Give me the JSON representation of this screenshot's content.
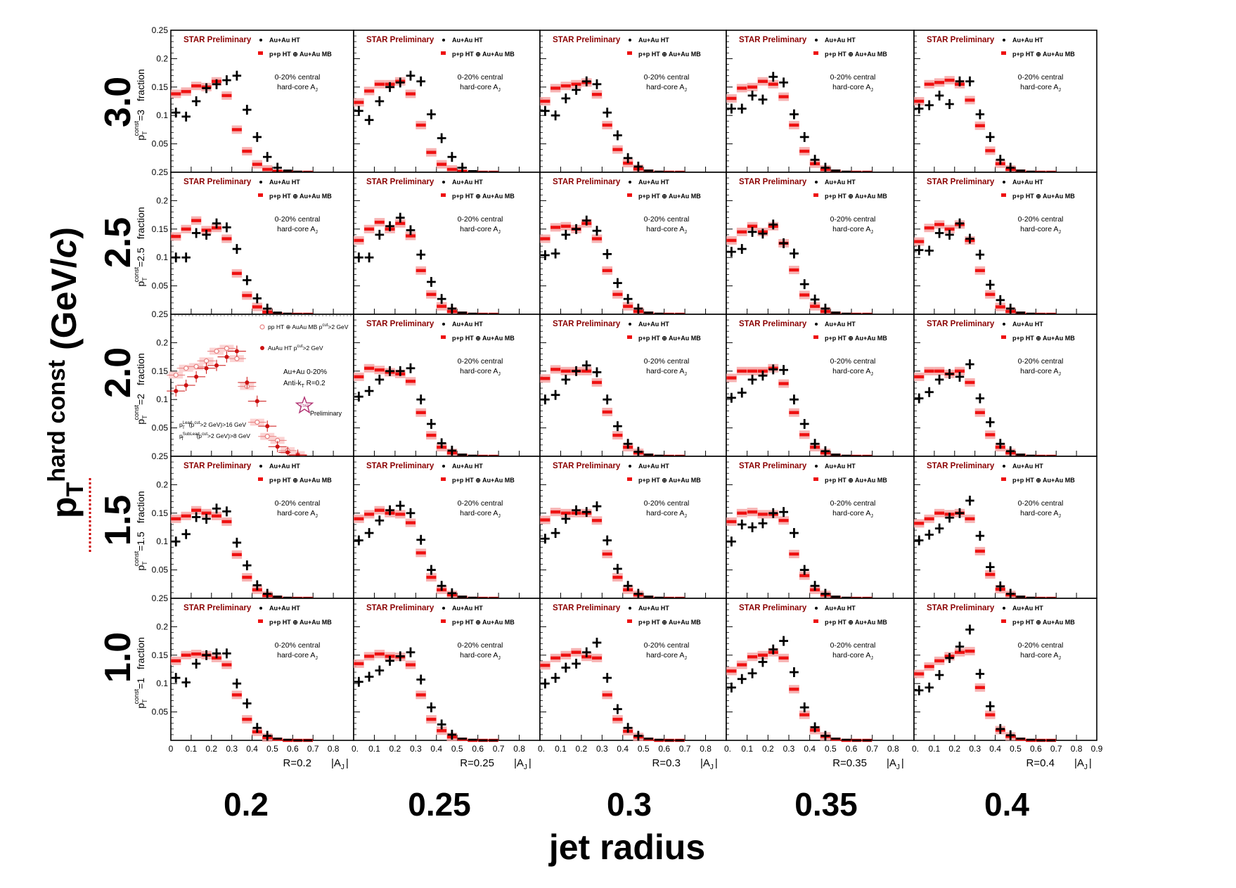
{
  "labels": {
    "preliminary": "STAR Preliminary",
    "auau_legend": "Au+Au HT",
    "pp_legend": "p+p HT ⊕ Au+Au MB",
    "centrality": "0-20% central",
    "hardcore": "hard-core A",
    "hardcore_sub": "J",
    "x_title": "jet radius",
    "y_title_main": "p",
    "y_title_sub": "T",
    "y_title_sup": "hard const",
    "y_title_unit": "(GeV/",
    "y_title_unit_c": "c",
    "y_title_close": ")",
    "axis_aj": "|A",
    "axis_aj_sub": "J",
    "axis_aj_close": "|",
    "fraction": "fraction",
    "pt_prefix": "p",
    "pt_sup": "const",
    "pt_sub": "T"
  },
  "legacy_panel": {
    "legend_pp": "pp HT ⊕ AuAu MB p",
    "legend_pp_tail": ">2 GeV",
    "legend_auau": "AuAu HT p",
    "legend_auau_tail": ">2 GeV",
    "sup_cut": "cut",
    "info1": "Au+Au 0-20%",
    "info2": "Anti-k",
    "info2_sub": "T",
    "info2_tail": " R=0.2",
    "logo_text": "STAR",
    "logo_word": "Preliminary",
    "cut1_pre": "p",
    "cut1_sup": "Lead",
    "cut1_sub": "T",
    "cut1_mid": "(p",
    "cut1_mid_sub": "T",
    "cut1_mid_sup": "cut",
    "cut1_tail": ">2 GeV)>16 GeV",
    "cut2_sup": "SubLead",
    "cut2_tail": ">2 GeV)>8 GeV"
  },
  "colors": {
    "auau": "#000000",
    "pp": "#ee1111",
    "pp_band": "#f5a0a0",
    "preliminary": "#8b0000",
    "legacy_open": "#e88080",
    "legacy_closed": "#cc1111"
  },
  "chart_data": {
    "type": "scatter",
    "columns": [
      "0.2",
      "0.25",
      "0.3",
      "0.35",
      "0.4"
    ],
    "rows": [
      "3.0",
      "2.5",
      "2.0",
      "1.5",
      "1.0"
    ],
    "row_pt_values": [
      "3",
      "2.5",
      "2",
      "1.5",
      "1"
    ],
    "radius_tags": [
      "R=0.2",
      "R=0.25",
      "R=0.3",
      "R=0.35",
      "R=0.4"
    ],
    "x_label": "jet radius",
    "y_label": "pT hard const (GeV/c)",
    "xlim": [
      0,
      0.9
    ],
    "ylim": [
      0,
      0.25
    ],
    "x_ticks": [
      "0",
      "0.1",
      "0.2",
      "0.3",
      "0.4",
      "0.5",
      "0.6",
      "0.7",
      "0.8",
      "0.9"
    ],
    "y_ticks": [
      "0.05",
      "0.1",
      "0.15",
      "0.2",
      "0.25"
    ],
    "x": [
      0.025,
      0.075,
      0.125,
      0.175,
      0.225,
      0.275,
      0.325,
      0.375,
      0.425,
      0.475,
      0.525,
      0.575,
      0.625,
      0.675
    ],
    "panels": [
      [
        {
          "auau": [
            0.105,
            0.098,
            0.125,
            0.148,
            0.155,
            0.162,
            0.17,
            0.11,
            0.062,
            0.027,
            0.008,
            0.003,
            0.001,
            0
          ],
          "pp": [
            0.138,
            0.142,
            0.152,
            0.15,
            0.16,
            0.135,
            0.075,
            0.037,
            0.014,
            0.005,
            0.002,
            0.001,
            0,
            0
          ]
        },
        {
          "auau": [
            0.108,
            0.092,
            0.125,
            0.15,
            0.158,
            0.17,
            0.16,
            0.102,
            0.06,
            0.027,
            0.008,
            0.002,
            0,
            0
          ],
          "pp": [
            0.123,
            0.143,
            0.155,
            0.155,
            0.16,
            0.138,
            0.083,
            0.035,
            0.014,
            0.005,
            0.002,
            0,
            0,
            0
          ]
        },
        {
          "auau": [
            0.108,
            0.1,
            0.13,
            0.145,
            0.16,
            0.155,
            0.105,
            0.065,
            0.025,
            0.01,
            0.003,
            0.001,
            0,
            0
          ],
          "pp": [
            0.125,
            0.148,
            0.152,
            0.155,
            0.158,
            0.137,
            0.083,
            0.04,
            0.016,
            0.006,
            0.002,
            0,
            0,
            0
          ]
        },
        {
          "auau": [
            0.112,
            0.112,
            0.135,
            0.128,
            0.168,
            0.158,
            0.102,
            0.062,
            0.022,
            0.008,
            0.003,
            0.001,
            0,
            0
          ],
          "pp": [
            0.13,
            0.148,
            0.15,
            0.16,
            0.155,
            0.133,
            0.083,
            0.037,
            0.015,
            0.005,
            0.002,
            0,
            0,
            0
          ]
        },
        {
          "auau": [
            0.112,
            0.118,
            0.135,
            0.12,
            0.16,
            0.16,
            0.102,
            0.062,
            0.022,
            0.008,
            0.003,
            0.001,
            0,
            0
          ],
          "pp": [
            0.125,
            0.155,
            0.158,
            0.162,
            0.155,
            0.127,
            0.082,
            0.038,
            0.015,
            0.005,
            0.002,
            0,
            0,
            0
          ]
        }
      ],
      [
        {
          "auau": [
            0.1,
            0.1,
            0.143,
            0.14,
            0.16,
            0.153,
            0.115,
            0.06,
            0.028,
            0.01,
            0.003,
            0.001,
            0,
            0
          ],
          "pp": [
            0.137,
            0.15,
            0.165,
            0.148,
            0.152,
            0.133,
            0.072,
            0.033,
            0.013,
            0.004,
            0.001,
            0,
            0,
            0
          ]
        },
        {
          "auau": [
            0.1,
            0.1,
            0.14,
            0.155,
            0.17,
            0.148,
            0.105,
            0.057,
            0.027,
            0.01,
            0.003,
            0.001,
            0,
            0
          ],
          "pp": [
            0.13,
            0.15,
            0.162,
            0.15,
            0.16,
            0.138,
            0.077,
            0.035,
            0.014,
            0.005,
            0.002,
            0,
            0,
            0
          ]
        },
        {
          "auau": [
            0.104,
            0.107,
            0.14,
            0.15,
            0.165,
            0.147,
            0.106,
            0.055,
            0.027,
            0.01,
            0.003,
            0.001,
            0,
            0
          ],
          "pp": [
            0.133,
            0.153,
            0.155,
            0.15,
            0.16,
            0.133,
            0.077,
            0.035,
            0.014,
            0.005,
            0.002,
            0,
            0,
            0
          ]
        },
        {
          "auau": [
            0.11,
            0.115,
            0.145,
            0.142,
            0.158,
            0.125,
            0.107,
            0.053,
            0.026,
            0.01,
            0.003,
            0.001,
            0,
            0
          ],
          "pp": [
            0.13,
            0.145,
            0.155,
            0.145,
            0.155,
            0.125,
            0.078,
            0.034,
            0.014,
            0.005,
            0.002,
            0,
            0,
            0
          ]
        },
        {
          "auau": [
            0.113,
            0.112,
            0.143,
            0.14,
            0.16,
            0.133,
            0.105,
            0.052,
            0.025,
            0.01,
            0.003,
            0.001,
            0,
            0
          ],
          "pp": [
            0.128,
            0.152,
            0.158,
            0.15,
            0.158,
            0.13,
            0.077,
            0.035,
            0.013,
            0.005,
            0.002,
            0,
            0,
            0
          ]
        }
      ],
      [
        {
          "legacy": true,
          "open": [
            0.143,
            0.155,
            0.158,
            0.168,
            0.185,
            0.19,
            0.172,
            0.123,
            0.06,
            0.035,
            0.028,
            0.01,
            0.003,
            0
          ],
          "closed": [
            0.115,
            0.125,
            0.14,
            0.155,
            0.16,
            0.175,
            0.185,
            0.13,
            0.097,
            0.053,
            0.017,
            0.007,
            0.002,
            0
          ]
        },
        {
          "auau": [
            0.105,
            0.115,
            0.135,
            0.15,
            0.15,
            0.155,
            0.1,
            0.057,
            0.023,
            0.01,
            0.003,
            0.001,
            0,
            0
          ],
          "pp": [
            0.14,
            0.155,
            0.152,
            0.148,
            0.145,
            0.132,
            0.077,
            0.037,
            0.016,
            0.006,
            0.002,
            0,
            0,
            0
          ]
        },
        {
          "auau": [
            0.1,
            0.108,
            0.135,
            0.15,
            0.16,
            0.148,
            0.1,
            0.053,
            0.022,
            0.008,
            0.003,
            0.001,
            0,
            0
          ],
          "pp": [
            0.137,
            0.153,
            0.15,
            0.15,
            0.15,
            0.13,
            0.078,
            0.037,
            0.016,
            0.006,
            0.002,
            0,
            0,
            0
          ]
        },
        {
          "auau": [
            0.103,
            0.112,
            0.135,
            0.142,
            0.153,
            0.152,
            0.1,
            0.057,
            0.022,
            0.009,
            0.003,
            0.001,
            0,
            0
          ],
          "pp": [
            0.138,
            0.15,
            0.15,
            0.15,
            0.155,
            0.128,
            0.077,
            0.038,
            0.016,
            0.006,
            0.002,
            0,
            0,
            0
          ]
        },
        {
          "auau": [
            0.102,
            0.113,
            0.135,
            0.145,
            0.14,
            0.162,
            0.102,
            0.06,
            0.022,
            0.009,
            0.003,
            0.001,
            0,
            0
          ],
          "pp": [
            0.14,
            0.15,
            0.15,
            0.145,
            0.15,
            0.13,
            0.077,
            0.038,
            0.016,
            0.006,
            0.002,
            0,
            0,
            0
          ]
        }
      ],
      [
        {
          "auau": [
            0.1,
            0.113,
            0.143,
            0.14,
            0.158,
            0.153,
            0.098,
            0.058,
            0.023,
            0.008,
            0.003,
            0.001,
            0,
            0
          ],
          "pp": [
            0.14,
            0.145,
            0.155,
            0.15,
            0.145,
            0.135,
            0.077,
            0.037,
            0.015,
            0.005,
            0.002,
            0,
            0,
            0
          ]
        },
        {
          "auau": [
            0.102,
            0.115,
            0.137,
            0.155,
            0.163,
            0.15,
            0.103,
            0.05,
            0.022,
            0.009,
            0.003,
            0.001,
            0,
            0
          ],
          "pp": [
            0.14,
            0.148,
            0.155,
            0.15,
            0.148,
            0.133,
            0.08,
            0.037,
            0.015,
            0.006,
            0.002,
            0,
            0,
            0
          ]
        },
        {
          "auau": [
            0.105,
            0.115,
            0.14,
            0.155,
            0.152,
            0.162,
            0.102,
            0.052,
            0.022,
            0.008,
            0.003,
            0.001,
            0,
            0
          ],
          "pp": [
            0.138,
            0.152,
            0.15,
            0.15,
            0.15,
            0.137,
            0.078,
            0.037,
            0.015,
            0.006,
            0.002,
            0,
            0,
            0
          ]
        },
        {
          "auau": [
            0.1,
            0.13,
            0.125,
            0.132,
            0.15,
            0.152,
            0.115,
            0.05,
            0.022,
            0.008,
            0.003,
            0.001,
            0,
            0
          ],
          "pp": [
            0.135,
            0.15,
            0.152,
            0.148,
            0.148,
            0.137,
            0.078,
            0.04,
            0.015,
            0.006,
            0.002,
            0,
            0,
            0
          ]
        },
        {
          "auau": [
            0.102,
            0.112,
            0.123,
            0.142,
            0.15,
            0.172,
            0.11,
            0.055,
            0.021,
            0.008,
            0.003,
            0.001,
            0,
            0
          ],
          "pp": [
            0.132,
            0.14,
            0.15,
            0.148,
            0.15,
            0.14,
            0.083,
            0.042,
            0.016,
            0.006,
            0.002,
            0,
            0,
            0
          ]
        }
      ],
      [
        {
          "auau": [
            0.11,
            0.102,
            0.135,
            0.15,
            0.153,
            0.153,
            0.1,
            0.065,
            0.022,
            0.008,
            0.003,
            0.001,
            0,
            0
          ],
          "pp": [
            0.14,
            0.15,
            0.152,
            0.15,
            0.145,
            0.133,
            0.08,
            0.037,
            0.015,
            0.005,
            0.002,
            0,
            0,
            0
          ]
        },
        {
          "auau": [
            0.103,
            0.112,
            0.123,
            0.14,
            0.148,
            0.155,
            0.107,
            0.058,
            0.028,
            0.01,
            0.003,
            0.001,
            0,
            0
          ],
          "pp": [
            0.135,
            0.148,
            0.152,
            0.148,
            0.147,
            0.133,
            0.08,
            0.037,
            0.017,
            0.006,
            0.002,
            0,
            0,
            0
          ]
        },
        {
          "auau": [
            0.1,
            0.11,
            0.128,
            0.135,
            0.155,
            0.172,
            0.11,
            0.055,
            0.022,
            0.008,
            0.003,
            0.001,
            0,
            0
          ],
          "pp": [
            0.132,
            0.145,
            0.15,
            0.155,
            0.147,
            0.145,
            0.08,
            0.037,
            0.016,
            0.006,
            0.002,
            0,
            0,
            0
          ]
        },
        {
          "auau": [
            0.093,
            0.108,
            0.118,
            0.138,
            0.16,
            0.175,
            0.12,
            0.058,
            0.023,
            0.008,
            0.003,
            0.001,
            0,
            0
          ],
          "pp": [
            0.122,
            0.133,
            0.147,
            0.15,
            0.155,
            0.145,
            0.09,
            0.045,
            0.018,
            0.007,
            0.002,
            0,
            0,
            0
          ]
        },
        {
          "auau": [
            0.088,
            0.093,
            0.115,
            0.145,
            0.165,
            0.195,
            0.117,
            0.06,
            0.02,
            0.009,
            0.003,
            0.001,
            0,
            0
          ],
          "pp": [
            0.117,
            0.13,
            0.14,
            0.148,
            0.155,
            0.157,
            0.093,
            0.045,
            0.018,
            0.007,
            0.002,
            0,
            0,
            0
          ]
        }
      ]
    ]
  }
}
